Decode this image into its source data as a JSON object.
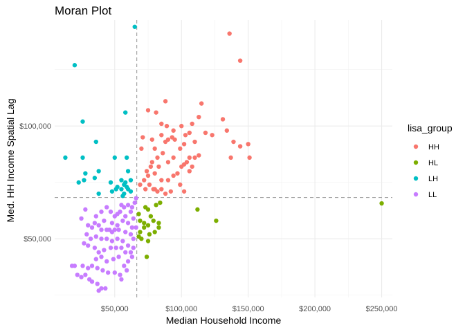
{
  "chart_data": {
    "type": "scatter",
    "title": "Moran Plot",
    "xlabel": "Median Household Income",
    "ylabel": "Med. HH Income Spatial Lag",
    "xlim": [
      5000,
      258000
    ],
    "ylim": [
      24000,
      147000
    ],
    "x_ticks": [
      50000,
      100000,
      150000,
      200000,
      250000
    ],
    "x_tick_labels": [
      "$50,000",
      "$100,000",
      "$150,000",
      "$200,000",
      "$250,000"
    ],
    "y_ticks": [
      50000,
      100000
    ],
    "y_tick_labels": [
      "$50,000",
      "$100,000"
    ],
    "reference_lines": {
      "x_mean": 66500,
      "y_mean": 68300
    },
    "legend": {
      "title": "lisa_group",
      "position": "right",
      "entries": [
        "HH",
        "HL",
        "LH",
        "LL"
      ]
    },
    "colors": {
      "HH": "#F8766D",
      "HL": "#7CAE00",
      "LH": "#00BFC4",
      "LL": "#C77CFF"
    },
    "series": [
      {
        "name": "HH",
        "points": [
          [
            136000,
            141000
          ],
          [
            144000,
            129000
          ],
          [
            88000,
            111000
          ],
          [
            115000,
            110000
          ],
          [
            75000,
            107000
          ],
          [
            81000,
            106000
          ],
          [
            113000,
            104000
          ],
          [
            85000,
            101000
          ],
          [
            89000,
            100000
          ],
          [
            94000,
            98000
          ],
          [
            100000,
            100000
          ],
          [
            108000,
            101000
          ],
          [
            131000,
            103000
          ],
          [
            134000,
            98000
          ],
          [
            118000,
            97000
          ],
          [
            123000,
            96000
          ],
          [
            103000,
            96000
          ],
          [
            106000,
            97000
          ],
          [
            93000,
            95000
          ],
          [
            90000,
            94000
          ],
          [
            95000,
            94000
          ],
          [
            85000,
            96000
          ],
          [
            71000,
            95000
          ],
          [
            78000,
            94000
          ],
          [
            88000,
            93000
          ],
          [
            70000,
            90000
          ],
          [
            80000,
            90000
          ],
          [
            99000,
            90000
          ],
          [
            102000,
            92000
          ],
          [
            110000,
            93000
          ],
          [
            139000,
            93000
          ],
          [
            150000,
            92000
          ],
          [
            144000,
            91000
          ],
          [
            137000,
            86000
          ],
          [
            151000,
            86000
          ],
          [
            113000,
            87000
          ],
          [
            110000,
            86000
          ],
          [
            106000,
            86000
          ],
          [
            104000,
            84000
          ],
          [
            100000,
            82000
          ],
          [
            94000,
            86000
          ],
          [
            90000,
            84000
          ],
          [
            86000,
            88000
          ],
          [
            82000,
            86000
          ],
          [
            78000,
            84000
          ],
          [
            77000,
            82000
          ],
          [
            74000,
            80000
          ],
          [
            83000,
            82000
          ],
          [
            102000,
            83000
          ],
          [
            108000,
            82000
          ],
          [
            97000,
            79000
          ],
          [
            80000,
            79000
          ],
          [
            75000,
            78000
          ],
          [
            72000,
            76000
          ],
          [
            85000,
            76000
          ],
          [
            90000,
            76000
          ],
          [
            94000,
            78000
          ],
          [
            106000,
            80000
          ],
          [
            76000,
            74000
          ],
          [
            80000,
            72000
          ],
          [
            82000,
            71000
          ],
          [
            85000,
            72000
          ],
          [
            88000,
            70000
          ],
          [
            99000,
            74000
          ],
          [
            102000,
            71000
          ],
          [
            92000,
            71000
          ],
          [
            69000,
            74000
          ],
          [
            73000,
            72000
          ],
          [
            79000,
            72000
          ]
        ]
      },
      {
        "name": "HL",
        "points": [
          [
            250000,
            65700
          ],
          [
            68000,
            61000
          ],
          [
            73000,
            64000
          ],
          [
            75000,
            63000
          ],
          [
            81000,
            65000
          ],
          [
            84000,
            66000
          ],
          [
            77000,
            60000
          ],
          [
            69000,
            58000
          ],
          [
            72000,
            57000
          ],
          [
            75000,
            56000
          ],
          [
            79000,
            58000
          ],
          [
            83000,
            57000
          ],
          [
            72000,
            55000
          ],
          [
            69000,
            53000
          ],
          [
            76000,
            52000
          ],
          [
            80000,
            53000
          ],
          [
            68000,
            51000
          ],
          [
            70000,
            50000
          ],
          [
            75000,
            49000
          ],
          [
            83000,
            55000
          ],
          [
            112000,
            63000
          ],
          [
            126000,
            58000
          ],
          [
            74000,
            42000
          ]
        ]
      },
      {
        "name": "LH",
        "points": [
          [
            65000,
            144000
          ],
          [
            20000,
            127000
          ],
          [
            58000,
            106000
          ],
          [
            26000,
            102000
          ],
          [
            36000,
            93000
          ],
          [
            13000,
            86000
          ],
          [
            26000,
            86000
          ],
          [
            50000,
            86000
          ],
          [
            59000,
            86000
          ],
          [
            38000,
            80000
          ],
          [
            28000,
            79000
          ],
          [
            60000,
            80000
          ],
          [
            35000,
            77000
          ],
          [
            27000,
            76000
          ],
          [
            23000,
            75000
          ],
          [
            62000,
            76000
          ],
          [
            47000,
            75000
          ],
          [
            55000,
            76000
          ],
          [
            57000,
            74000
          ],
          [
            58000,
            75000
          ],
          [
            52000,
            73000
          ],
          [
            59000,
            73000
          ],
          [
            60000,
            72000
          ],
          [
            62000,
            71000
          ],
          [
            55000,
            72000
          ],
          [
            51000,
            72000
          ],
          [
            48000,
            71000
          ],
          [
            56000,
            69000
          ],
          [
            57000,
            70000
          ],
          [
            38000,
            70000
          ]
        ]
      },
      {
        "name": "LL",
        "points": [
          [
            66000,
            68000
          ],
          [
            65000,
            66000
          ],
          [
            63000,
            64000
          ],
          [
            60000,
            65000
          ],
          [
            57000,
            64000
          ],
          [
            55000,
            65000
          ],
          [
            54000,
            62000
          ],
          [
            62000,
            62000
          ],
          [
            58000,
            60000
          ],
          [
            52000,
            61000
          ],
          [
            50000,
            60000
          ],
          [
            47000,
            62000
          ],
          [
            44000,
            64000
          ],
          [
            40000,
            62000
          ],
          [
            36000,
            60000
          ],
          [
            35000,
            57000
          ],
          [
            38000,
            56000
          ],
          [
            42000,
            58000
          ],
          [
            48000,
            57000
          ],
          [
            52000,
            56000
          ],
          [
            56000,
            58000
          ],
          [
            60000,
            57000
          ],
          [
            63000,
            55000
          ],
          [
            64000,
            59000
          ],
          [
            28000,
            63000
          ],
          [
            25000,
            59000
          ],
          [
            30000,
            56000
          ],
          [
            33000,
            55000
          ],
          [
            40000,
            54000
          ],
          [
            44000,
            54000
          ],
          [
            46000,
            54000
          ],
          [
            48000,
            53000
          ],
          [
            50000,
            54000
          ],
          [
            53000,
            54000
          ],
          [
            58000,
            53000
          ],
          [
            62000,
            52000
          ],
          [
            64000,
            50000
          ],
          [
            66000,
            55000
          ],
          [
            29000,
            52000
          ],
          [
            32000,
            50000
          ],
          [
            36000,
            51000
          ],
          [
            40000,
            50000
          ],
          [
            44000,
            50000
          ],
          [
            48000,
            49000
          ],
          [
            52000,
            50000
          ],
          [
            56000,
            49000
          ],
          [
            60000,
            47000
          ],
          [
            64000,
            46000
          ],
          [
            27000,
            48000
          ],
          [
            30000,
            47000
          ],
          [
            35000,
            46000
          ],
          [
            38000,
            44000
          ],
          [
            42000,
            45000
          ],
          [
            47000,
            46000
          ],
          [
            51000,
            46000
          ],
          [
            55000,
            46000
          ],
          [
            58000,
            44000
          ],
          [
            62000,
            44000
          ],
          [
            36000,
            41000
          ],
          [
            40000,
            42000
          ],
          [
            44000,
            40000
          ],
          [
            49000,
            41000
          ],
          [
            53000,
            42000
          ],
          [
            57000,
            38000
          ],
          [
            60000,
            40000
          ],
          [
            63000,
            42000
          ],
          [
            18000,
            38000
          ],
          [
            20000,
            38000
          ],
          [
            26000,
            38000
          ],
          [
            30000,
            37000
          ],
          [
            33000,
            38000
          ],
          [
            37000,
            37000
          ],
          [
            41000,
            36000
          ],
          [
            45000,
            35000
          ],
          [
            50000,
            35000
          ],
          [
            54000,
            34000
          ],
          [
            22000,
            34000
          ],
          [
            28000,
            34000
          ],
          [
            25000,
            33000
          ],
          [
            31000,
            32000
          ],
          [
            33000,
            31000
          ],
          [
            37000,
            30000
          ],
          [
            40000,
            28000
          ],
          [
            43000,
            28000
          ],
          [
            38000,
            27000
          ],
          [
            55000,
            32000
          ],
          [
            59000,
            36000
          ]
        ]
      }
    ]
  }
}
